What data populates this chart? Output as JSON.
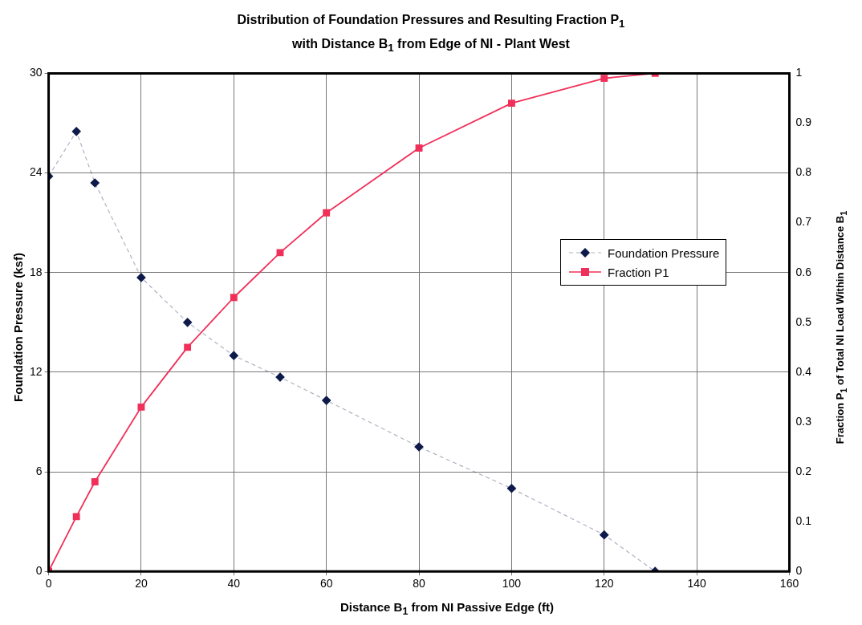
{
  "chart_data": {
    "type": "line",
    "title": "Distribution of Foundation Pressures and Resulting Fraction P$_{1}$\nwith Distance B$_{1}$ from Edge of NI - Plant West",
    "xlabel": "Distance B$_{1}$ from NI Passive Edge (ft)",
    "ylabel": "Foundation Pressure (ksf)",
    "y2label": "Fraction P$_{1}$ of Total NI Load Within Distance B$_{1}$",
    "x": [
      0,
      6,
      10,
      20,
      30,
      40,
      50,
      60,
      80,
      100,
      120,
      131
    ],
    "series": [
      {
        "name": "Foundation Pressure",
        "color": "#0d1a4a",
        "line_style": "dashed",
        "marker": "diamond",
        "values": [
          23.8,
          26.5,
          23.4,
          17.7,
          15.0,
          13.0,
          11.7,
          10.3,
          7.5,
          5.0,
          2.2,
          0
        ]
      },
      {
        "name": "Fraction P1",
        "color": "#f0305a",
        "line_style": "solid",
        "marker": "square",
        "axis": "y2",
        "values": [
          0,
          0.11,
          0.18,
          0.33,
          0.45,
          0.55,
          0.64,
          0.72,
          0.85,
          0.94,
          0.99,
          1.0
        ]
      }
    ],
    "xlim": [
      0,
      160
    ],
    "xticks": [
      0,
      20,
      40,
      60,
      80,
      100,
      120,
      140,
      160
    ],
    "ylim": [
      0,
      30
    ],
    "yticks": [
      0,
      6,
      12,
      18,
      24,
      30
    ],
    "y2lim": [
      0,
      1
    ],
    "y2ticks": [
      0,
      0.1,
      0.2,
      0.3,
      0.4,
      0.5,
      0.6,
      0.7,
      0.8,
      0.9,
      1
    ],
    "grid": true,
    "legend": "right"
  }
}
